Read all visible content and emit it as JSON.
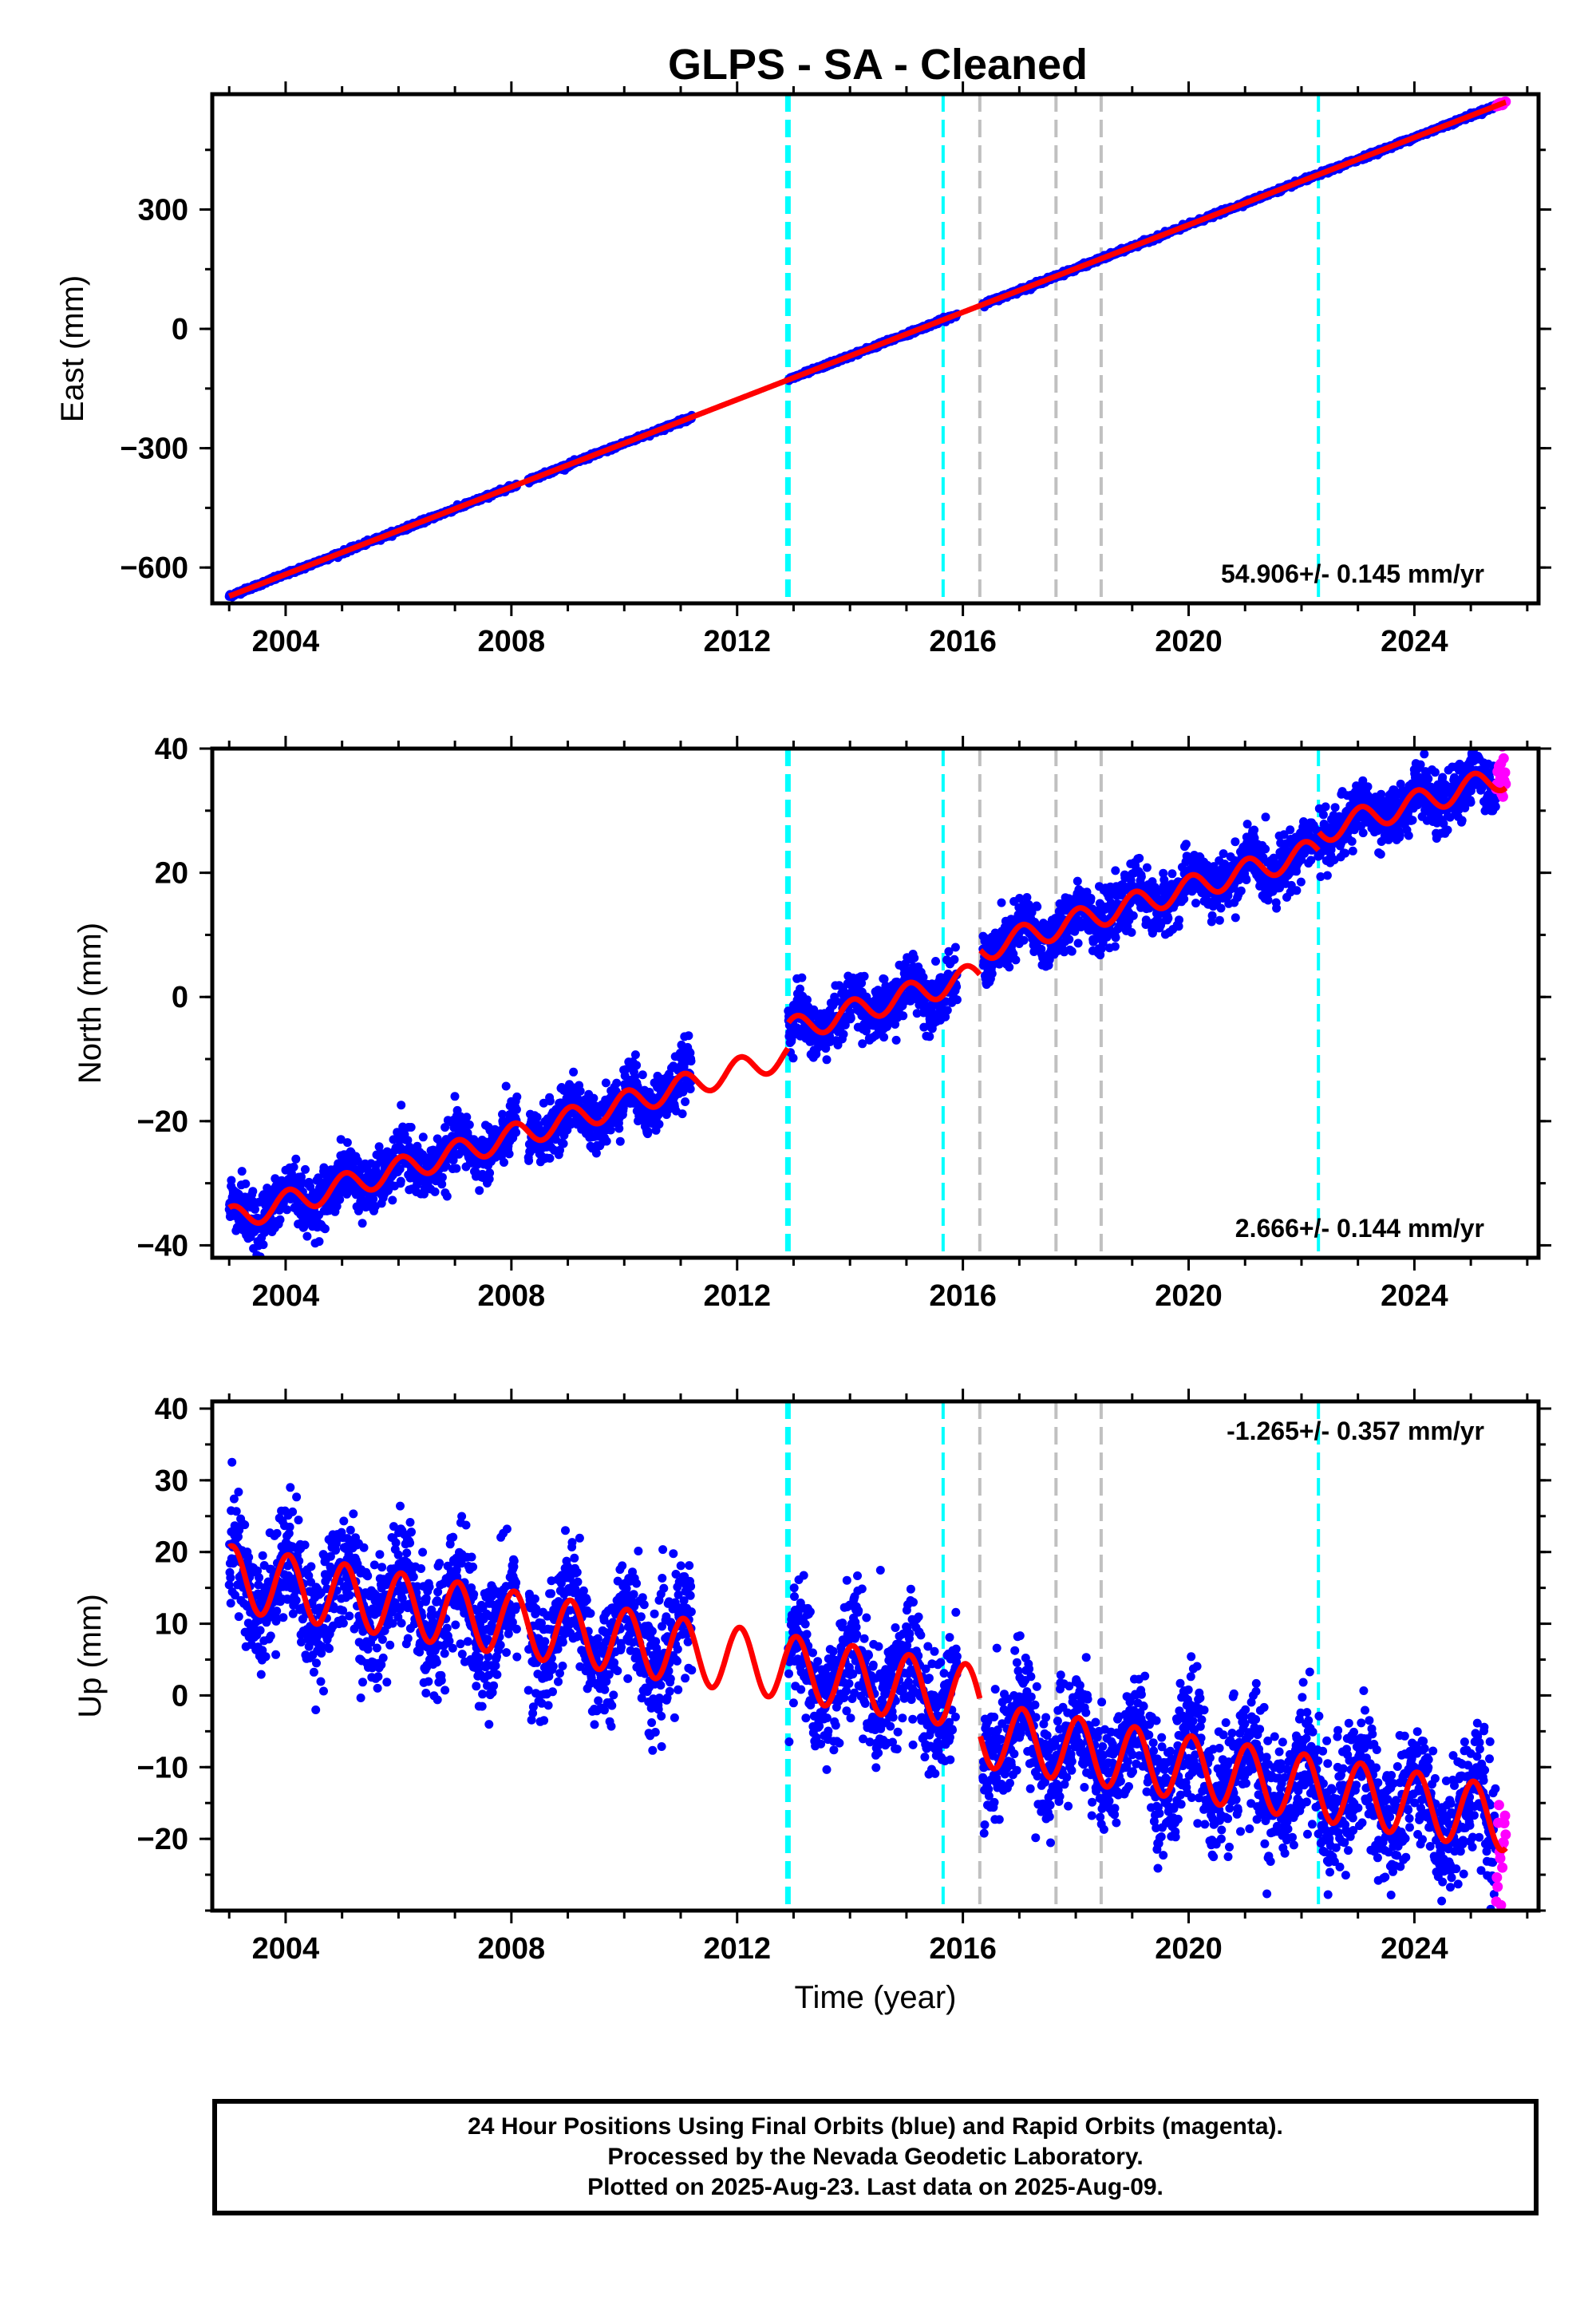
{
  "title": "GLPS  - SA - Cleaned",
  "colors": {
    "final_orbits": "#0000ff",
    "rapid_orbits": "#ff00ff",
    "model": "#ff0000",
    "equipment_change": "#00ffff",
    "other_event": "#c0c0c0"
  },
  "caption": [
    "24 Hour Positions Using Final Orbits (blue) and Rapid Orbits (magenta).",
    "Processed by the Nevada Geodetic Laboratory.",
    "Plotted on 2025-Aug-23. Last data on 2025-Aug-09."
  ],
  "chart_data": [
    {
      "type": "scatter",
      "ylabel": "East (mm)",
      "xlabel": "",
      "xlim": [
        2002.7,
        2026.2
      ],
      "ylim": [
        -690,
        590
      ],
      "xticks": [
        "2004",
        "2008",
        "2012",
        "2016",
        "2020",
        "2024"
      ],
      "yticks": [
        "300",
        "0",
        "−300",
        "−600"
      ],
      "rate": "54.906+/- 0.145 mm/yr",
      "rate_position": "bottom-right",
      "series": [
        {
          "role": "final-orbits",
          "values": "daily positions 2003.0–2025.55, trend ≈ 54.9 mm/yr"
        },
        {
          "role": "model",
          "values": "linear model"
        },
        {
          "role": "rapid-orbits",
          "values": "2025.45–2025.6"
        }
      ],
      "trend": {
        "intercept_at_2014": -68,
        "rate": 54.906
      },
      "data_gaps": [
        [
          2008.1,
          2008.3
        ],
        [
          2011.2,
          2012.9
        ],
        [
          2015.9,
          2016.35
        ]
      ],
      "events_cyan": [
        2012.9,
        2015.65,
        2022.3
      ],
      "events_gray": [
        2016.3,
        2017.65,
        2018.45
      ]
    },
    {
      "type": "scatter",
      "ylabel": "North (mm)",
      "xlabel": "",
      "xlim": [
        2002.7,
        2026.2
      ],
      "ylim": [
        -42,
        40
      ],
      "xticks": [
        "2004",
        "2008",
        "2012",
        "2016",
        "2020",
        "2024"
      ],
      "yticks": [
        "40",
        "20",
        "0",
        "−20",
        "−40"
      ],
      "rate": "2.666+/- 0.144 mm/yr",
      "rate_position": "bottom-right",
      "trend": {
        "intercept_at_2014": -6.5,
        "rate": 2.666
      },
      "offsets": [
        {
          "at": 2012.9,
          "dy": 4
        },
        {
          "at": 2016.3,
          "dy": 4
        },
        {
          "at": 2022.3,
          "dy": 3
        }
      ],
      "annual_amplitude": 2.0,
      "events_cyan": [
        2012.9,
        2015.65,
        2022.3
      ],
      "events_gray": [
        2016.3,
        2017.65,
        2018.45
      ]
    },
    {
      "type": "scatter",
      "ylabel": "Up (mm)",
      "xlabel": "Time (year)",
      "xlim": [
        2002.7,
        2026.2
      ],
      "ylim": [
        -30,
        41
      ],
      "xticks": [
        "2004",
        "2008",
        "2012",
        "2016",
        "2020",
        "2024"
      ],
      "yticks": [
        "40",
        "30",
        "20",
        "10",
        "0",
        "−10",
        "−20"
      ],
      "rate": "-1.265+/- 0.357 mm/yr",
      "rate_position": "top-right",
      "trend": {
        "intercept_at_2014": 2.5,
        "rate": -1.265
      },
      "offsets": [
        {
          "at": 2016.3,
          "dy": -5
        }
      ],
      "annual_amplitude": 4.5,
      "events_cyan": [
        2012.9,
        2015.65,
        2022.3
      ],
      "events_gray": [
        2016.3,
        2017.65,
        2018.45
      ]
    }
  ]
}
